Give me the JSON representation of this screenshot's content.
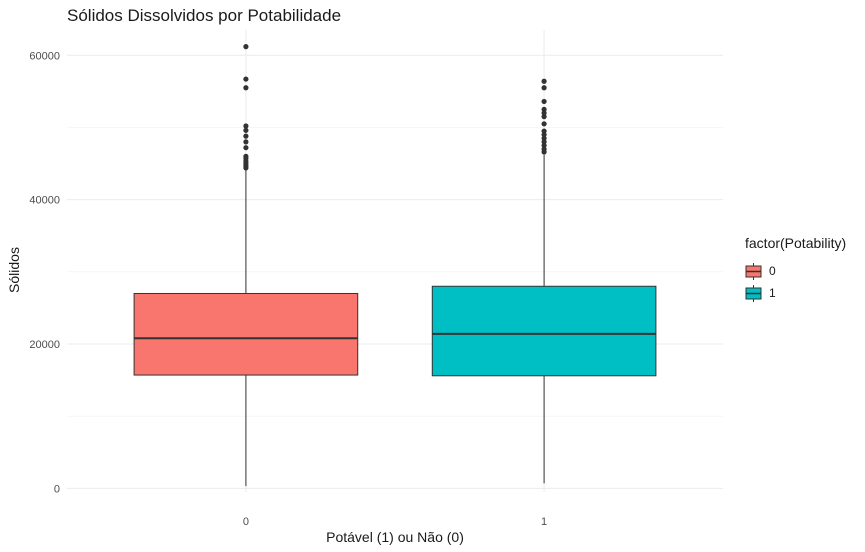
{
  "chart_data": {
    "type": "boxplot",
    "title": "Sólidos Dissolvidos por Potabilidade",
    "xlabel": "Potável (1) ou Não (0)",
    "ylabel": "Sólidos",
    "ylim": [
      -500,
      63500
    ],
    "y_ticks": [
      0,
      20000,
      40000,
      60000
    ],
    "y_tick_labels": [
      "0",
      "20000",
      "40000",
      "60000"
    ],
    "grid": true,
    "legend_title": "factor(Potability)",
    "legend_position": "right",
    "categories": [
      "0",
      "1"
    ],
    "series": [
      {
        "name": "0",
        "color": "#F8766D",
        "whisker_low": 320,
        "q1": 15700,
        "median": 20800,
        "q3": 27000,
        "whisker_high": 44200,
        "outliers": [
          44400,
          44700,
          45000,
          45300,
          45700,
          46000,
          47200,
          48000,
          48800,
          49600,
          50200,
          55500,
          56700,
          61200
        ]
      },
      {
        "name": "1",
        "color": "#00BFC4",
        "whisker_low": 700,
        "q1": 15600,
        "median": 21400,
        "q3": 28000,
        "whisker_high": 46200,
        "outliers": [
          46600,
          47000,
          47500,
          48000,
          48500,
          49000,
          49500,
          50500,
          51500,
          52000,
          52500,
          53600,
          55500,
          56400
        ]
      }
    ]
  }
}
